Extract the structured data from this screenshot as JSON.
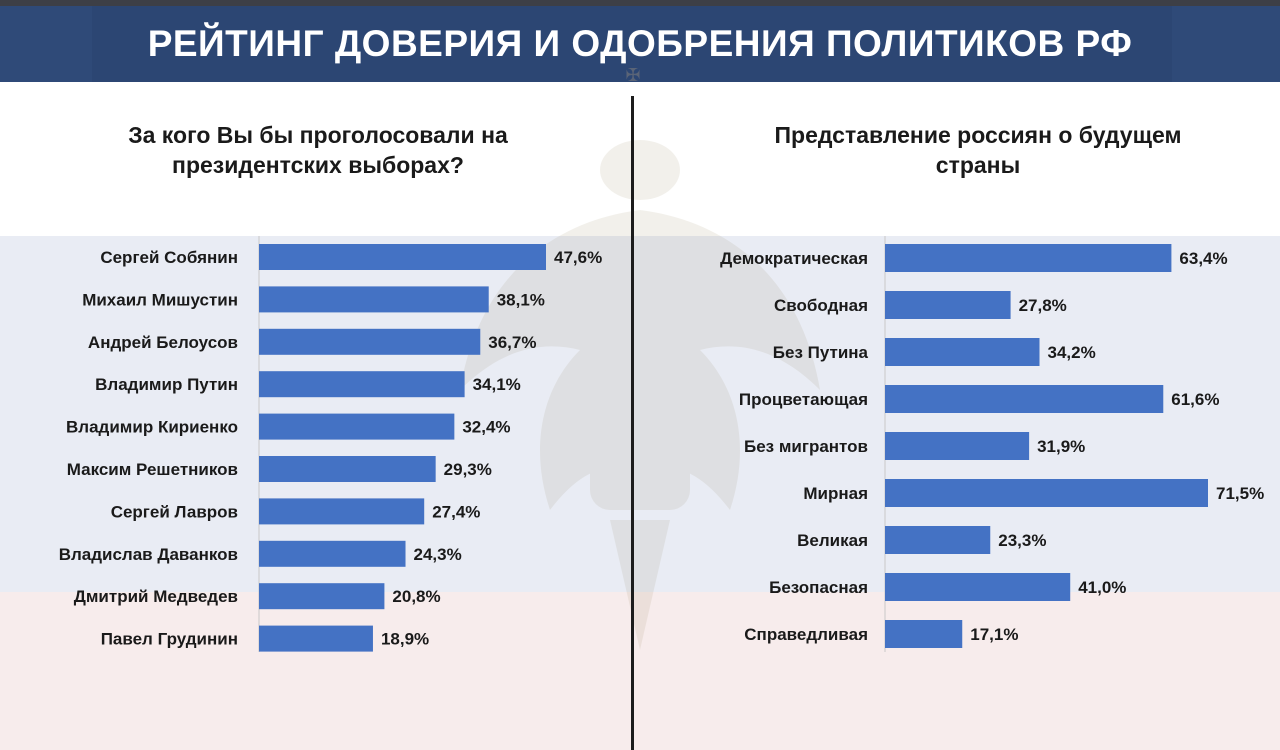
{
  "header": {
    "title": "РЕЙТИНГ ДОВЕРИЯ И ОДОБРЕНИЯ ПОЛИТИКОВ РФ"
  },
  "colors": {
    "bar": "#4472c4",
    "header_bg": "#2f4a78",
    "flag_blue": "#e9ecf4",
    "flag_red": "#f7ecec"
  },
  "chart_data": [
    {
      "type": "bar",
      "orientation": "horizontal",
      "title": "За кого Вы бы проголосовали на президентских выборах?",
      "title_lines": [
        "За кого Вы бы проголосовали на",
        "президентских выборах?"
      ],
      "categories": [
        "Сергей Собянин",
        "Михаил Мишустин",
        "Андрей Белоусов",
        "Владимир Путин",
        "Владимир Кириенко",
        "Максим Решетников",
        "Сергей Лавров",
        "Владислав Даванков",
        "Дмитрий Медведев",
        "Павел Грудинин"
      ],
      "values": [
        47.6,
        38.1,
        36.7,
        34.1,
        32.4,
        29.3,
        27.4,
        24.3,
        20.8,
        18.9
      ],
      "value_labels": [
        "47,6%",
        "38,1%",
        "36,7%",
        "34,1%",
        "32,4%",
        "29,3%",
        "27,4%",
        "24,3%",
        "20,8%",
        "18,9%"
      ],
      "xlim": [
        0,
        47.6
      ],
      "grid": false
    },
    {
      "type": "bar",
      "orientation": "horizontal",
      "title": "Представление россиян о будущем страны",
      "title_lines": [
        "Представление россиян о будущем",
        "страны"
      ],
      "categories": [
        "Демократическая",
        "Свободная",
        "Без Путина",
        "Процветающая",
        "Без мигрантов",
        "Мирная",
        "Великая",
        "Безопасная",
        "Справедливая"
      ],
      "values": [
        63.4,
        27.8,
        34.2,
        61.6,
        31.9,
        71.5,
        23.3,
        41.0,
        17.1
      ],
      "value_labels": [
        "63,4%",
        "27,8%",
        "34,2%",
        "61,6%",
        "31,9%",
        "71,5%",
        "23,3%",
        "41,0%",
        "17,1%"
      ],
      "xlim": [
        0,
        71.5
      ],
      "grid": false
    }
  ]
}
